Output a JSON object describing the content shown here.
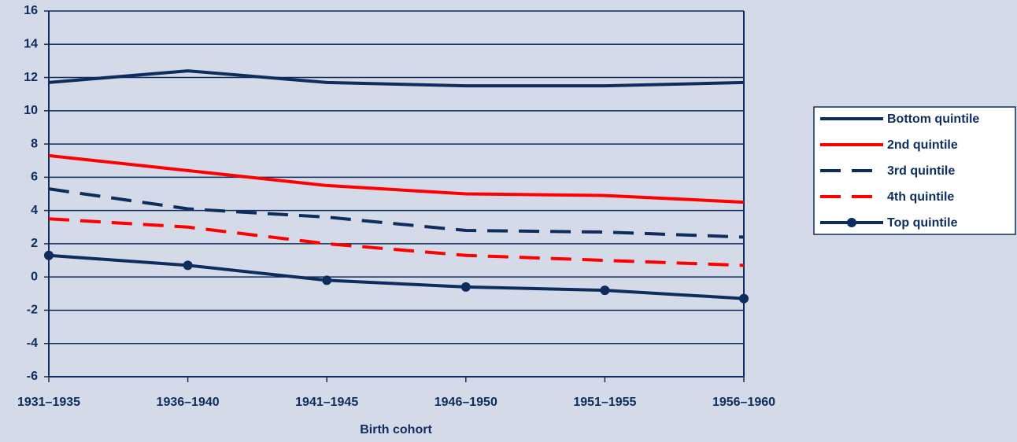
{
  "chart_data": {
    "type": "line",
    "categories": [
      "1931–1935",
      "1936–1940",
      "1941–1945",
      "1946–1950",
      "1951–1955",
      "1956–1960"
    ],
    "xlabel": "Birth cohort",
    "series": [
      {
        "name": "Bottom quintile",
        "color": "#0d2d5e",
        "dash": false,
        "marker": false,
        "values": [
          11.7,
          12.4,
          11.7,
          11.5,
          11.5,
          11.7
        ]
      },
      {
        "name": "2nd quintile",
        "color": "#ff0000",
        "dash": false,
        "marker": false,
        "values": [
          7.3,
          6.4,
          5.5,
          5.0,
          4.9,
          4.5
        ]
      },
      {
        "name": "3rd quintile",
        "color": "#0d2d5e",
        "dash": true,
        "marker": false,
        "values": [
          5.3,
          4.1,
          3.6,
          2.8,
          2.7,
          2.4
        ]
      },
      {
        "name": "4th quintile",
        "color": "#ff0000",
        "dash": true,
        "marker": false,
        "values": [
          3.5,
          3.0,
          2.0,
          1.3,
          1.0,
          0.7
        ]
      },
      {
        "name": "Top quintile",
        "color": "#0d2d5e",
        "dash": false,
        "marker": true,
        "values": [
          1.3,
          0.7,
          -0.2,
          -0.6,
          -0.8,
          -1.3
        ]
      }
    ],
    "ylim": [
      -6,
      16
    ],
    "yticks": [
      -6,
      -4,
      -2,
      0,
      2,
      4,
      6,
      8,
      10,
      12,
      14,
      16
    ],
    "grid": true,
    "legend": "right"
  }
}
